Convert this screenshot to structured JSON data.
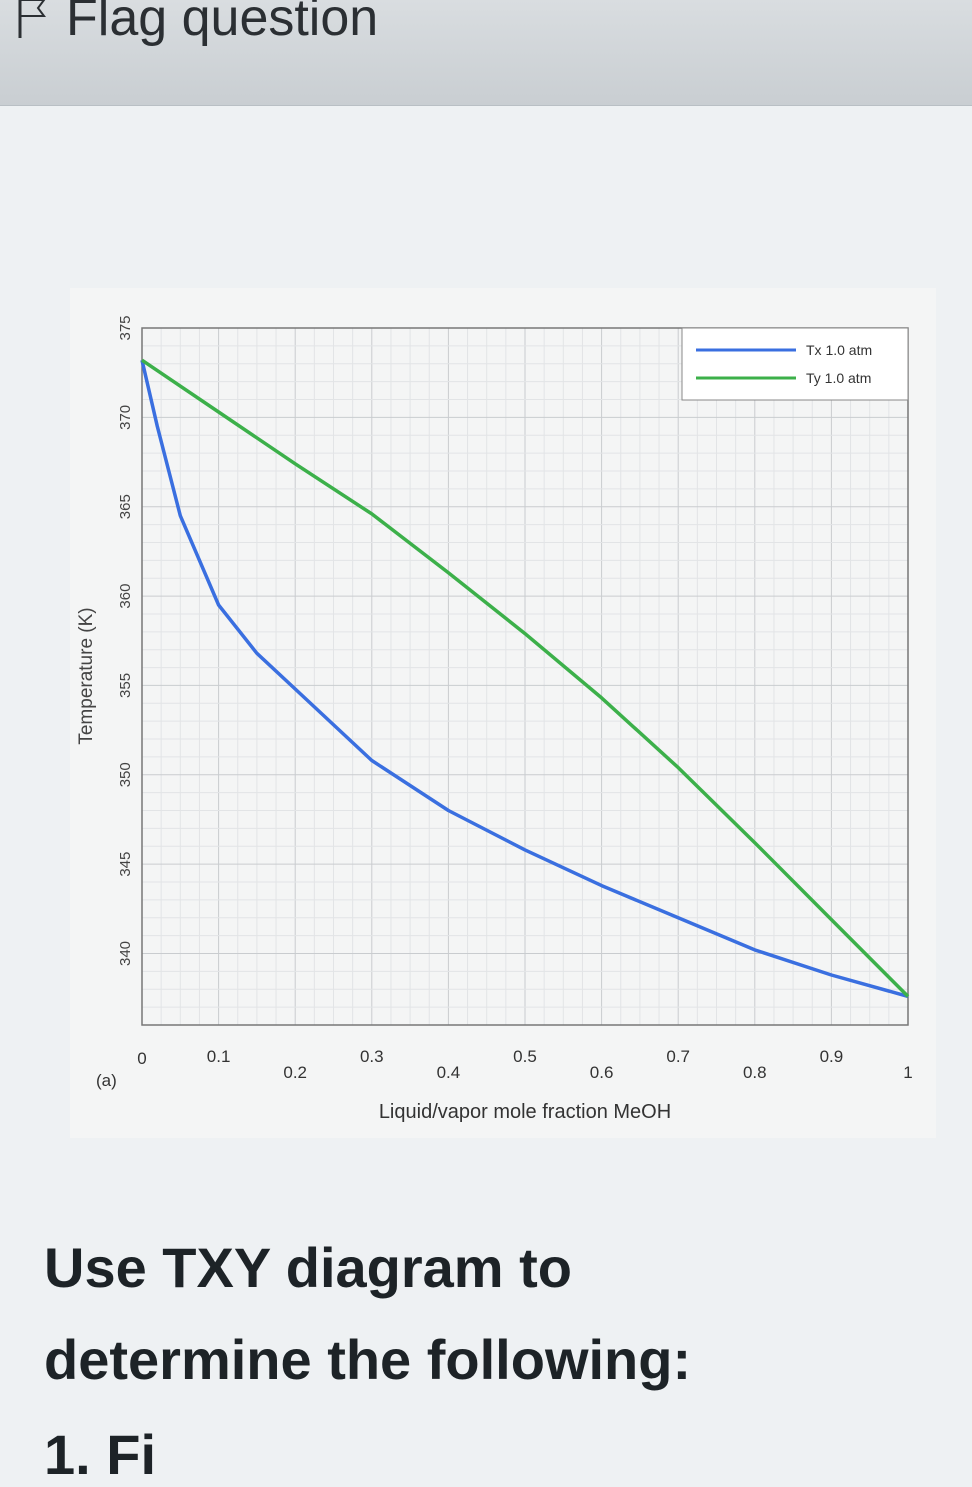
{
  "header": {
    "flag_label": "Flag question"
  },
  "chart_data": {
    "type": "line",
    "panel_label": "(a)",
    "xlabel": "Liquid/vapor mole fraction MeOH",
    "ylabel": "Temperature (K)",
    "xlim": [
      0,
      1
    ],
    "ylim": [
      336,
      375
    ],
    "x_ticks": [
      "0",
      "0.1",
      "0.2",
      "0.3",
      "0.4",
      "0.5",
      "0.6",
      "0.7",
      "0.8",
      "0.9",
      "1"
    ],
    "y_ticks": [
      "340",
      "345",
      "350",
      "355",
      "360",
      "365",
      "370",
      "375"
    ],
    "grid": true,
    "legend_position": "top-right",
    "series": [
      {
        "name": "Tx 1.0 atm",
        "color": "#3a6fe0",
        "x": [
          0,
          0.02,
          0.05,
          0.1,
          0.15,
          0.2,
          0.3,
          0.4,
          0.5,
          0.6,
          0.7,
          0.8,
          0.9,
          1.0
        ],
        "y": [
          373.2,
          369.5,
          364.5,
          359.5,
          356.8,
          354.8,
          350.8,
          348.0,
          345.8,
          343.8,
          342.0,
          340.2,
          338.8,
          337.6
        ]
      },
      {
        "name": "Ty 1.0 atm",
        "color": "#3cb04a",
        "x": [
          0,
          0.1,
          0.2,
          0.3,
          0.4,
          0.5,
          0.6,
          0.7,
          0.8,
          0.9,
          1.0
        ],
        "y": [
          373.2,
          370.3,
          367.4,
          364.6,
          361.3,
          357.9,
          354.3,
          350.4,
          346.2,
          341.9,
          337.6
        ]
      }
    ]
  },
  "prompt": {
    "line1": "Use TXY diagram to",
    "line2": "determine the following:",
    "line3": "1. Fi"
  }
}
